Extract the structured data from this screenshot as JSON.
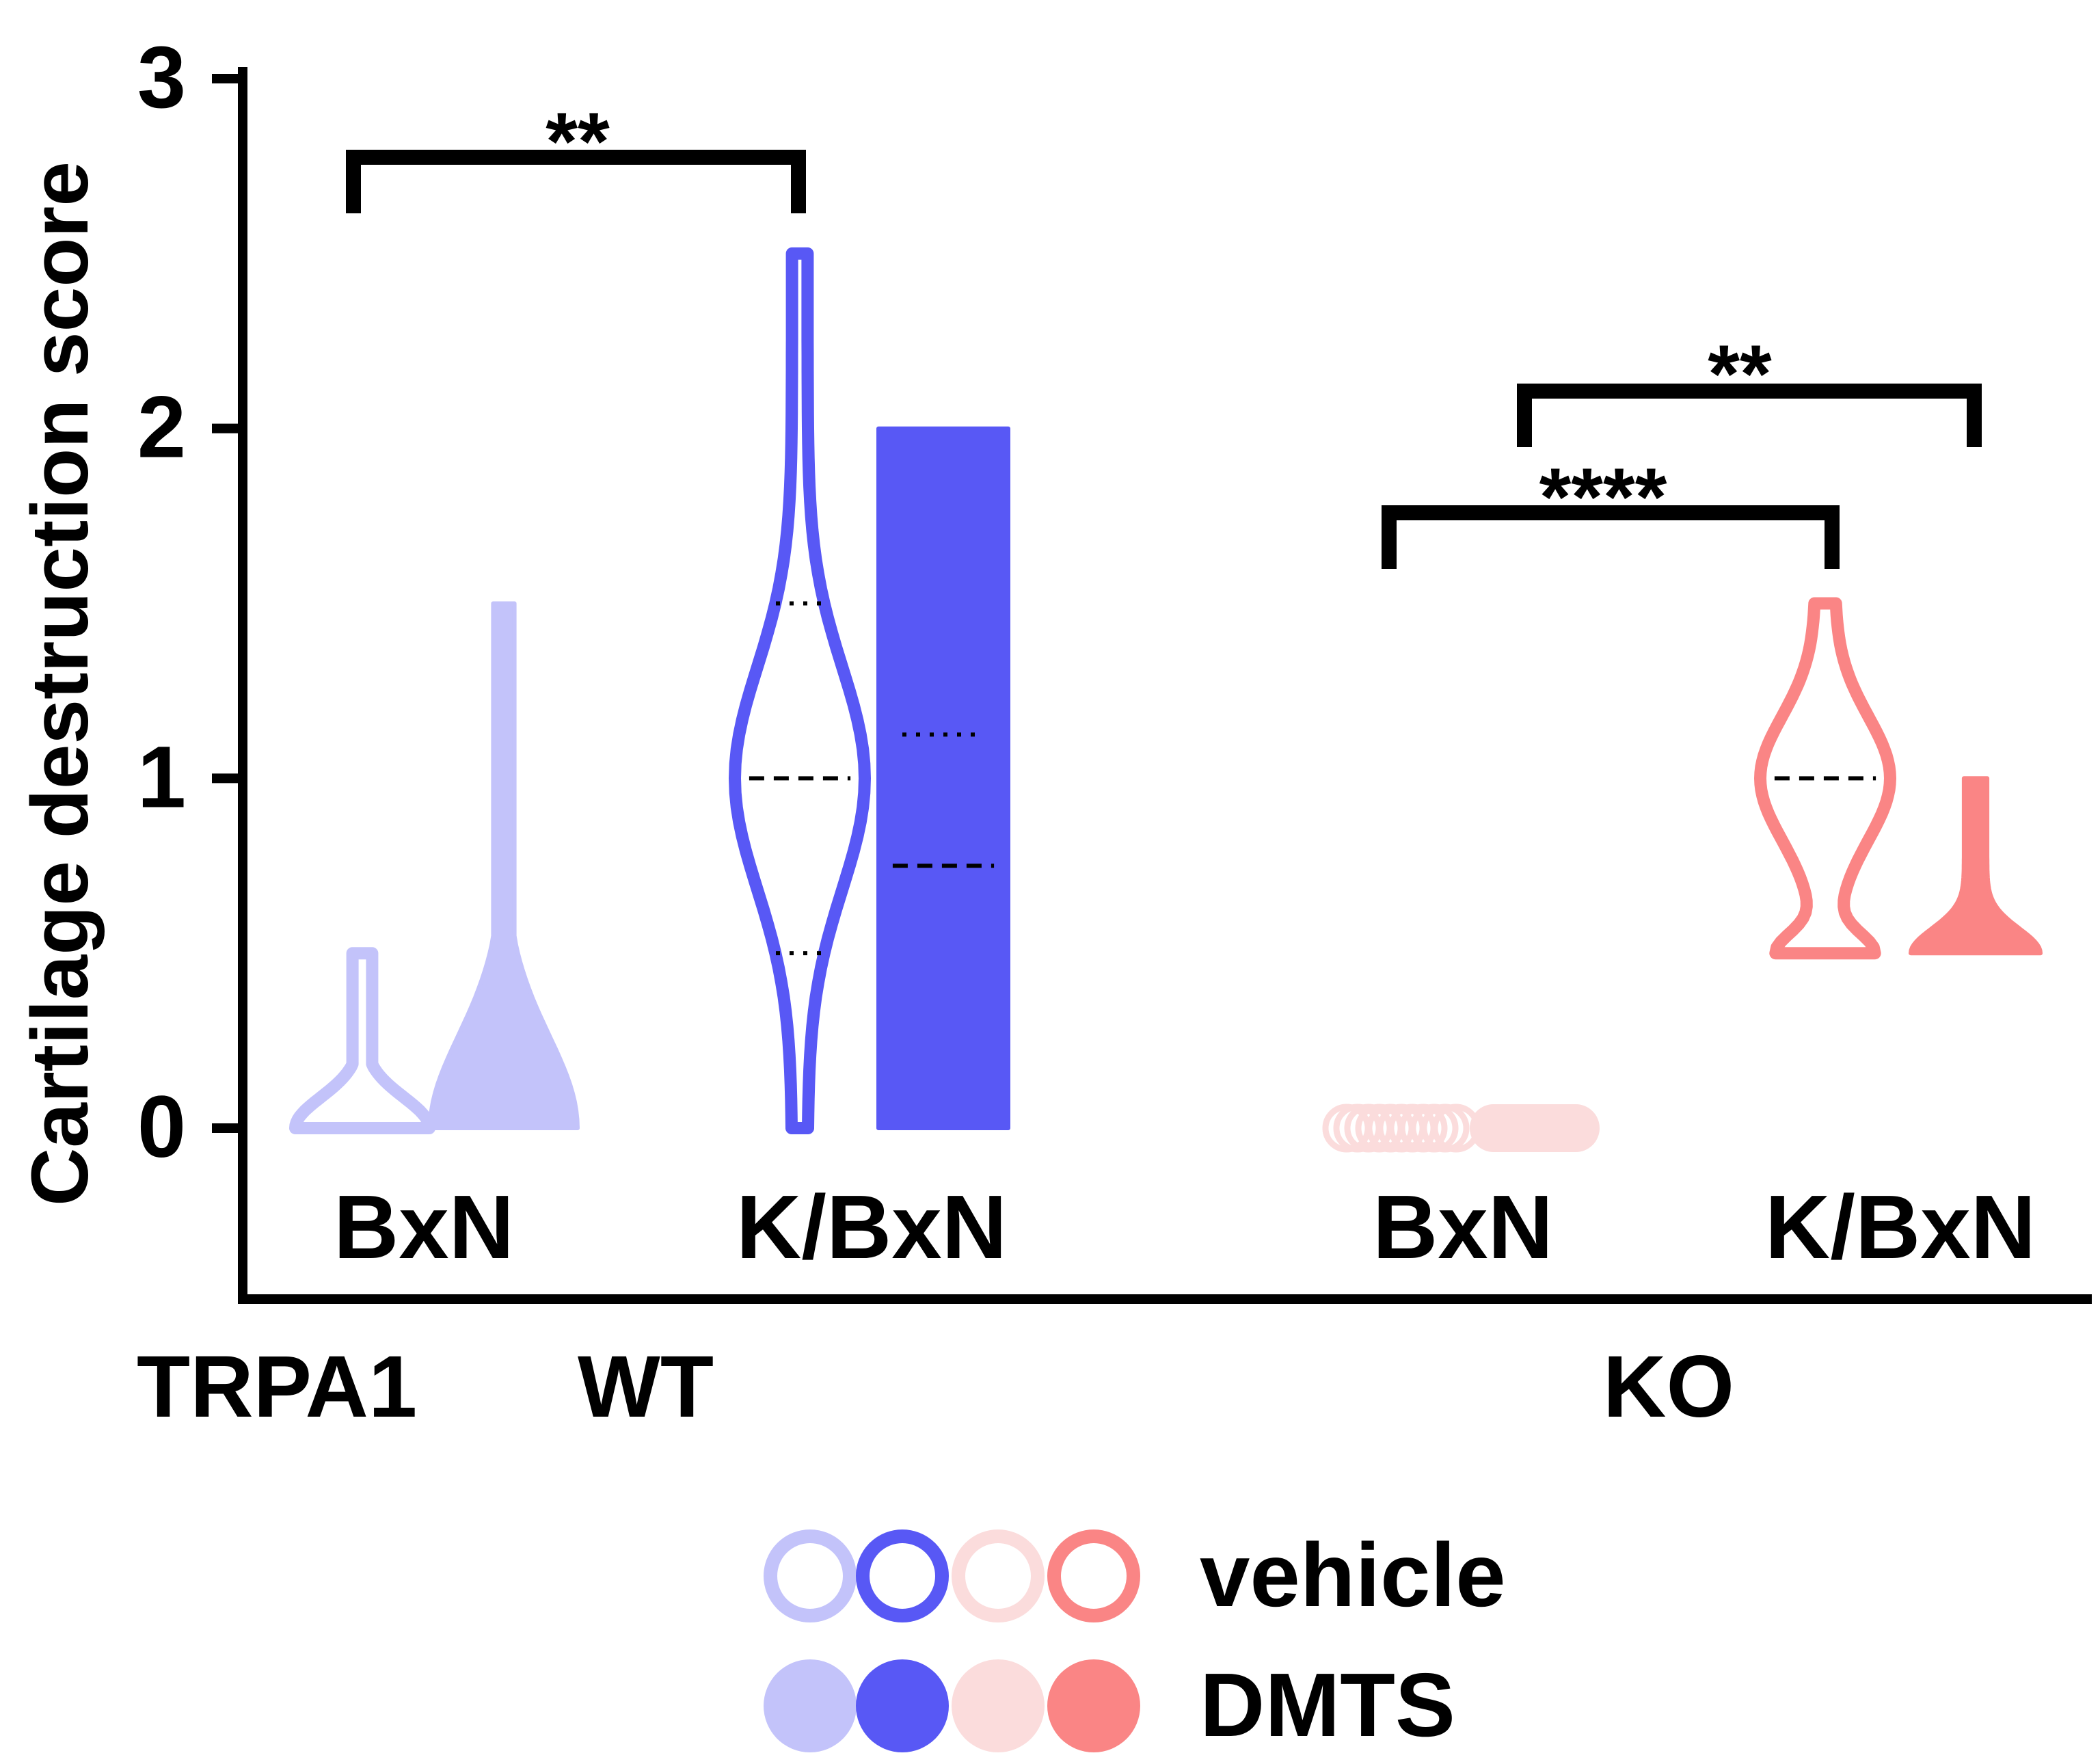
{
  "chart_data": {
    "type": "violin",
    "ylabel": "Cartilage destruction score",
    "ylim": [
      -0.5,
      3
    ],
    "yticks": [
      0,
      1,
      2,
      3
    ],
    "row_label": "TRPA1",
    "genotypes": [
      {
        "label": "WT",
        "groups": [
          "BxN",
          "K/BxN"
        ]
      },
      {
        "label": "KO",
        "groups": [
          "BxN",
          "K/BxN"
        ]
      }
    ],
    "series": [
      {
        "name": "WT BxN vehicle",
        "genotype": "WT",
        "serum": "BxN",
        "treatment": "vehicle",
        "color": "#c3c3fa",
        "min": 0,
        "max": 0.5,
        "median": 0
      },
      {
        "name": "WT BxN DMTS",
        "genotype": "WT",
        "serum": "BxN",
        "treatment": "DMTS",
        "color": "#c3c3fa",
        "min": 0,
        "max": 1.5,
        "median": 0
      },
      {
        "name": "WT K/BxN vehicle",
        "genotype": "WT",
        "serum": "K/BxN",
        "treatment": "vehicle",
        "color": "#5858f5",
        "min": 0,
        "max": 2.5,
        "median": 1,
        "q1": 0.5,
        "q3": 1.5
      },
      {
        "name": "WT K/BxN DMTS",
        "genotype": "WT",
        "serum": "K/BxN",
        "treatment": "DMTS",
        "color": "#5858f5",
        "min": 0,
        "max": 2,
        "median": 0.75,
        "q1": 0,
        "q3": 1.125
      },
      {
        "name": "KO BxN vehicle",
        "genotype": "KO",
        "serum": "BxN",
        "treatment": "vehicle",
        "color": "#fbdcdc",
        "min": 0,
        "max": 0,
        "median": 0
      },
      {
        "name": "KO BxN DMTS",
        "genotype": "KO",
        "serum": "BxN",
        "treatment": "DMTS",
        "color": "#fbdcdc",
        "min": 0,
        "max": 0,
        "median": 0
      },
      {
        "name": "KO K/BxN vehicle",
        "genotype": "KO",
        "serum": "K/BxN",
        "treatment": "vehicle",
        "color": "#fa8585",
        "min": 0.5,
        "max": 1.5,
        "median": 1
      },
      {
        "name": "KO K/BxN DMTS",
        "genotype": "KO",
        "serum": "K/BxN",
        "treatment": "DMTS",
        "color": "#fa8585",
        "min": 0.5,
        "max": 1,
        "median": 0.5
      }
    ],
    "significance": [
      {
        "from": "WT BxN vehicle",
        "to": "WT K/BxN vehicle",
        "label": "**"
      },
      {
        "from": "KO BxN vehicle",
        "to": "KO K/BxN vehicle",
        "label": "****"
      },
      {
        "from": "KO BxN DMTS",
        "to": "KO K/BxN DMTS",
        "label": "**"
      }
    ],
    "legend": [
      {
        "label": "vehicle",
        "style": "outline",
        "colors": [
          "#c3c3fa",
          "#5858f5",
          "#fbdcdc",
          "#fa8585"
        ]
      },
      {
        "label": "DMTS",
        "style": "filled",
        "colors": [
          "#c3c3fa",
          "#5858f5",
          "#fbdcdc",
          "#fa8585"
        ]
      }
    ]
  }
}
